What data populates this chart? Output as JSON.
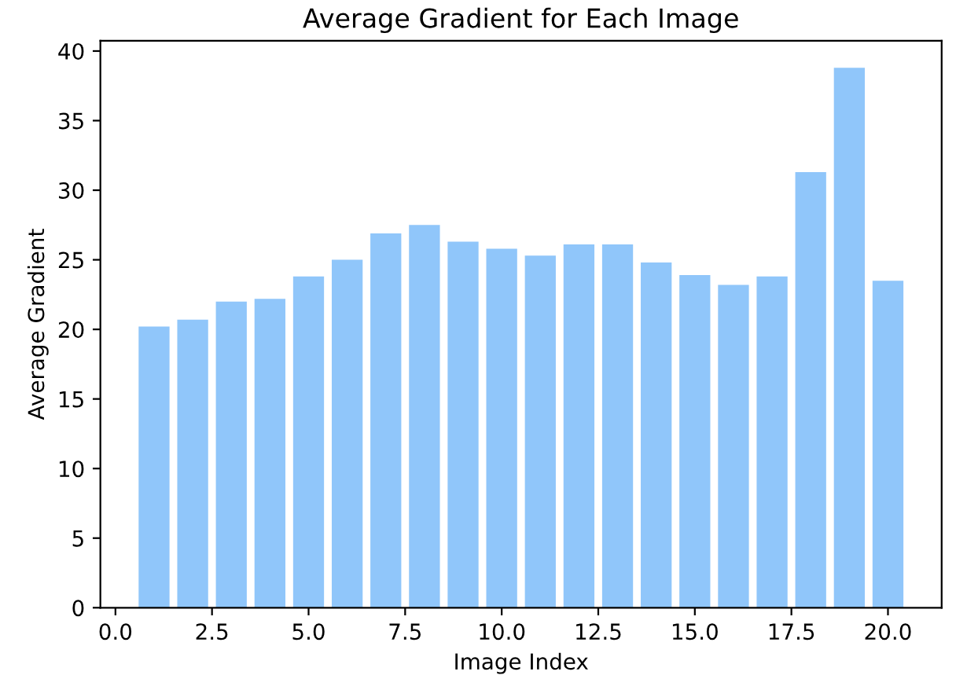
{
  "chart_data": {
    "type": "bar",
    "title": "Average Gradient for Each Image",
    "xlabel": "Image Index",
    "ylabel": "Average Gradient",
    "x": [
      1,
      2,
      3,
      4,
      5,
      6,
      7,
      8,
      9,
      10,
      11,
      12,
      13,
      14,
      15,
      16,
      17,
      18,
      19,
      20
    ],
    "values": [
      20.2,
      20.7,
      22.0,
      22.2,
      23.8,
      25.0,
      26.9,
      27.5,
      26.3,
      25.8,
      25.3,
      26.1,
      26.1,
      24.8,
      23.9,
      23.2,
      23.8,
      31.3,
      38.8,
      23.5
    ],
    "color": "#90c6fa",
    "xlim": [
      -0.39,
      21.39
    ],
    "xticks": [
      {
        "value": 0,
        "label": "0.0"
      },
      {
        "value": 2.5,
        "label": "2.5"
      },
      {
        "value": 5,
        "label": "5.0"
      },
      {
        "value": 7.5,
        "label": "7.5"
      },
      {
        "value": 10,
        "label": "10.0"
      },
      {
        "value": 12.5,
        "label": "12.5"
      },
      {
        "value": 15,
        "label": "15.0"
      },
      {
        "value": 17.5,
        "label": "17.5"
      },
      {
        "value": 20,
        "label": "20.0"
      }
    ],
    "ylim": [
      0,
      40.74
    ],
    "yticks": [
      0,
      5,
      10,
      15,
      20,
      25,
      30,
      35,
      40
    ],
    "grid": false
  }
}
